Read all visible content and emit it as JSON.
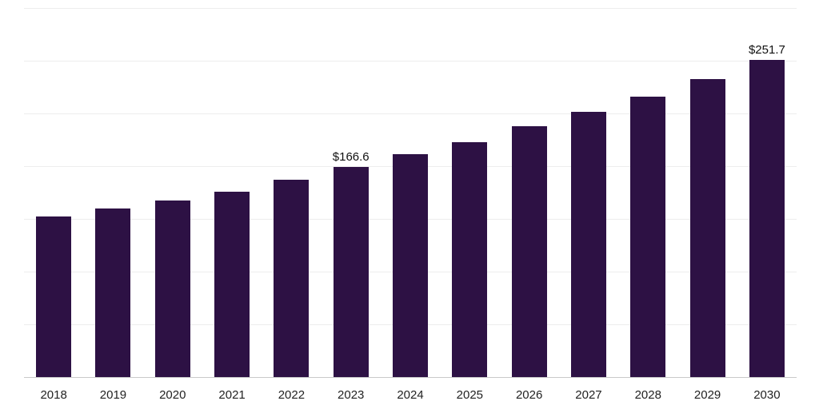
{
  "chart_data": {
    "type": "bar",
    "title": "",
    "xlabel": "",
    "ylabel": "",
    "categories": [
      "2018",
      "2019",
      "2020",
      "2021",
      "2022",
      "2023",
      "2024",
      "2025",
      "2026",
      "2027",
      "2028",
      "2029",
      "2030"
    ],
    "values": [
      127.2,
      133.8,
      140.1,
      147.1,
      156.6,
      166.6,
      176.9,
      186.4,
      199.1,
      210.5,
      222.5,
      236.5,
      251.7
    ],
    "point_labels": [
      "",
      "",
      "",
      "",
      "",
      "$166.6",
      "",
      "",
      "",
      "",
      "",
      "",
      "$251.7"
    ],
    "ylim": [
      0,
      293
    ],
    "grid": true,
    "gridline_count": 7,
    "legend_position": "none",
    "bar_color": "#2d1144",
    "grid_color": "#ededed",
    "axis_line_color": "#c9c9c9",
    "tick_label_color": "#222222",
    "value_label_color": "#111111"
  }
}
